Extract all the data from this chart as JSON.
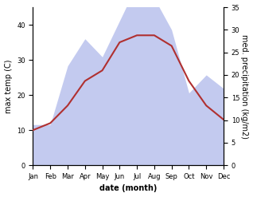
{
  "months": [
    "Jan",
    "Feb",
    "Mar",
    "Apr",
    "May",
    "Jun",
    "Jul",
    "Aug",
    "Sep",
    "Oct",
    "Nov",
    "Dec"
  ],
  "month_indices": [
    0,
    1,
    2,
    3,
    4,
    5,
    6,
    7,
    8,
    9,
    10,
    11
  ],
  "temperature": [
    10,
    12,
    17,
    24,
    27,
    35,
    37,
    37,
    34,
    24,
    17,
    13
  ],
  "precipitation": [
    9,
    9,
    22,
    28,
    24,
    32,
    40,
    37,
    30,
    16,
    20,
    17
  ],
  "temp_color": "#b03030",
  "precip_fill_color": "#bdc5ee",
  "temp_ylim": [
    0,
    45
  ],
  "precip_ylim": [
    0,
    35
  ],
  "temp_yticks": [
    0,
    10,
    20,
    30,
    40
  ],
  "precip_yticks": [
    0,
    5,
    10,
    15,
    20,
    25,
    30,
    35
  ],
  "xlabel": "date (month)",
  "ylabel_left": "max temp (C)",
  "ylabel_right": "med. precipitation (kg/m2)",
  "line_width": 1.5,
  "background_color": "#ffffff",
  "tick_fontsize": 6,
  "label_fontsize": 7,
  "xlabel_fontsize": 7
}
